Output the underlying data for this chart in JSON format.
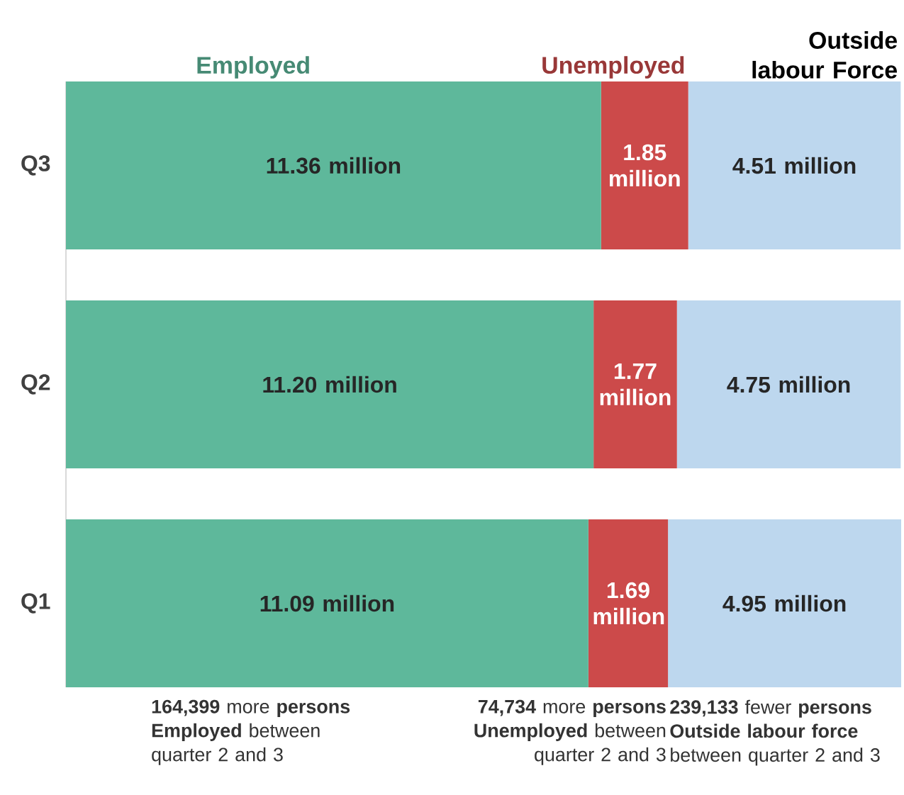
{
  "chart_data": {
    "type": "bar",
    "orientation": "horizontal",
    "stacked": true,
    "legend": "top",
    "categories": [
      "Q3",
      "Q2",
      "Q1"
    ],
    "series": [
      {
        "name": "Employed",
        "color": "#5eb89b",
        "values": [
          11.36,
          11.2,
          11.09
        ],
        "value_labels": [
          "11.36 million",
          "11.20 million",
          "11.09 million"
        ]
      },
      {
        "name": "Unemployed",
        "color": "#cc4a4a",
        "values": [
          1.85,
          1.77,
          1.69
        ],
        "value_labels": [
          "1.85 million",
          "1.77 million",
          "1.69 million"
        ]
      },
      {
        "name": "Outside labour Force",
        "color": "#bdd7ee",
        "values": [
          4.51,
          4.75,
          4.95
        ],
        "value_labels": [
          "4.51 million",
          "4.75 million",
          "4.95 million"
        ]
      }
    ],
    "annotations": [
      "**164,399** more **persons Employed** between quarter 2 and 3",
      "**74,734** more **persons Unemployed** between quarter 2 and 3",
      "**239,133** fewer **persons Outside labour force** between quarter 2 and 3"
    ]
  }
}
